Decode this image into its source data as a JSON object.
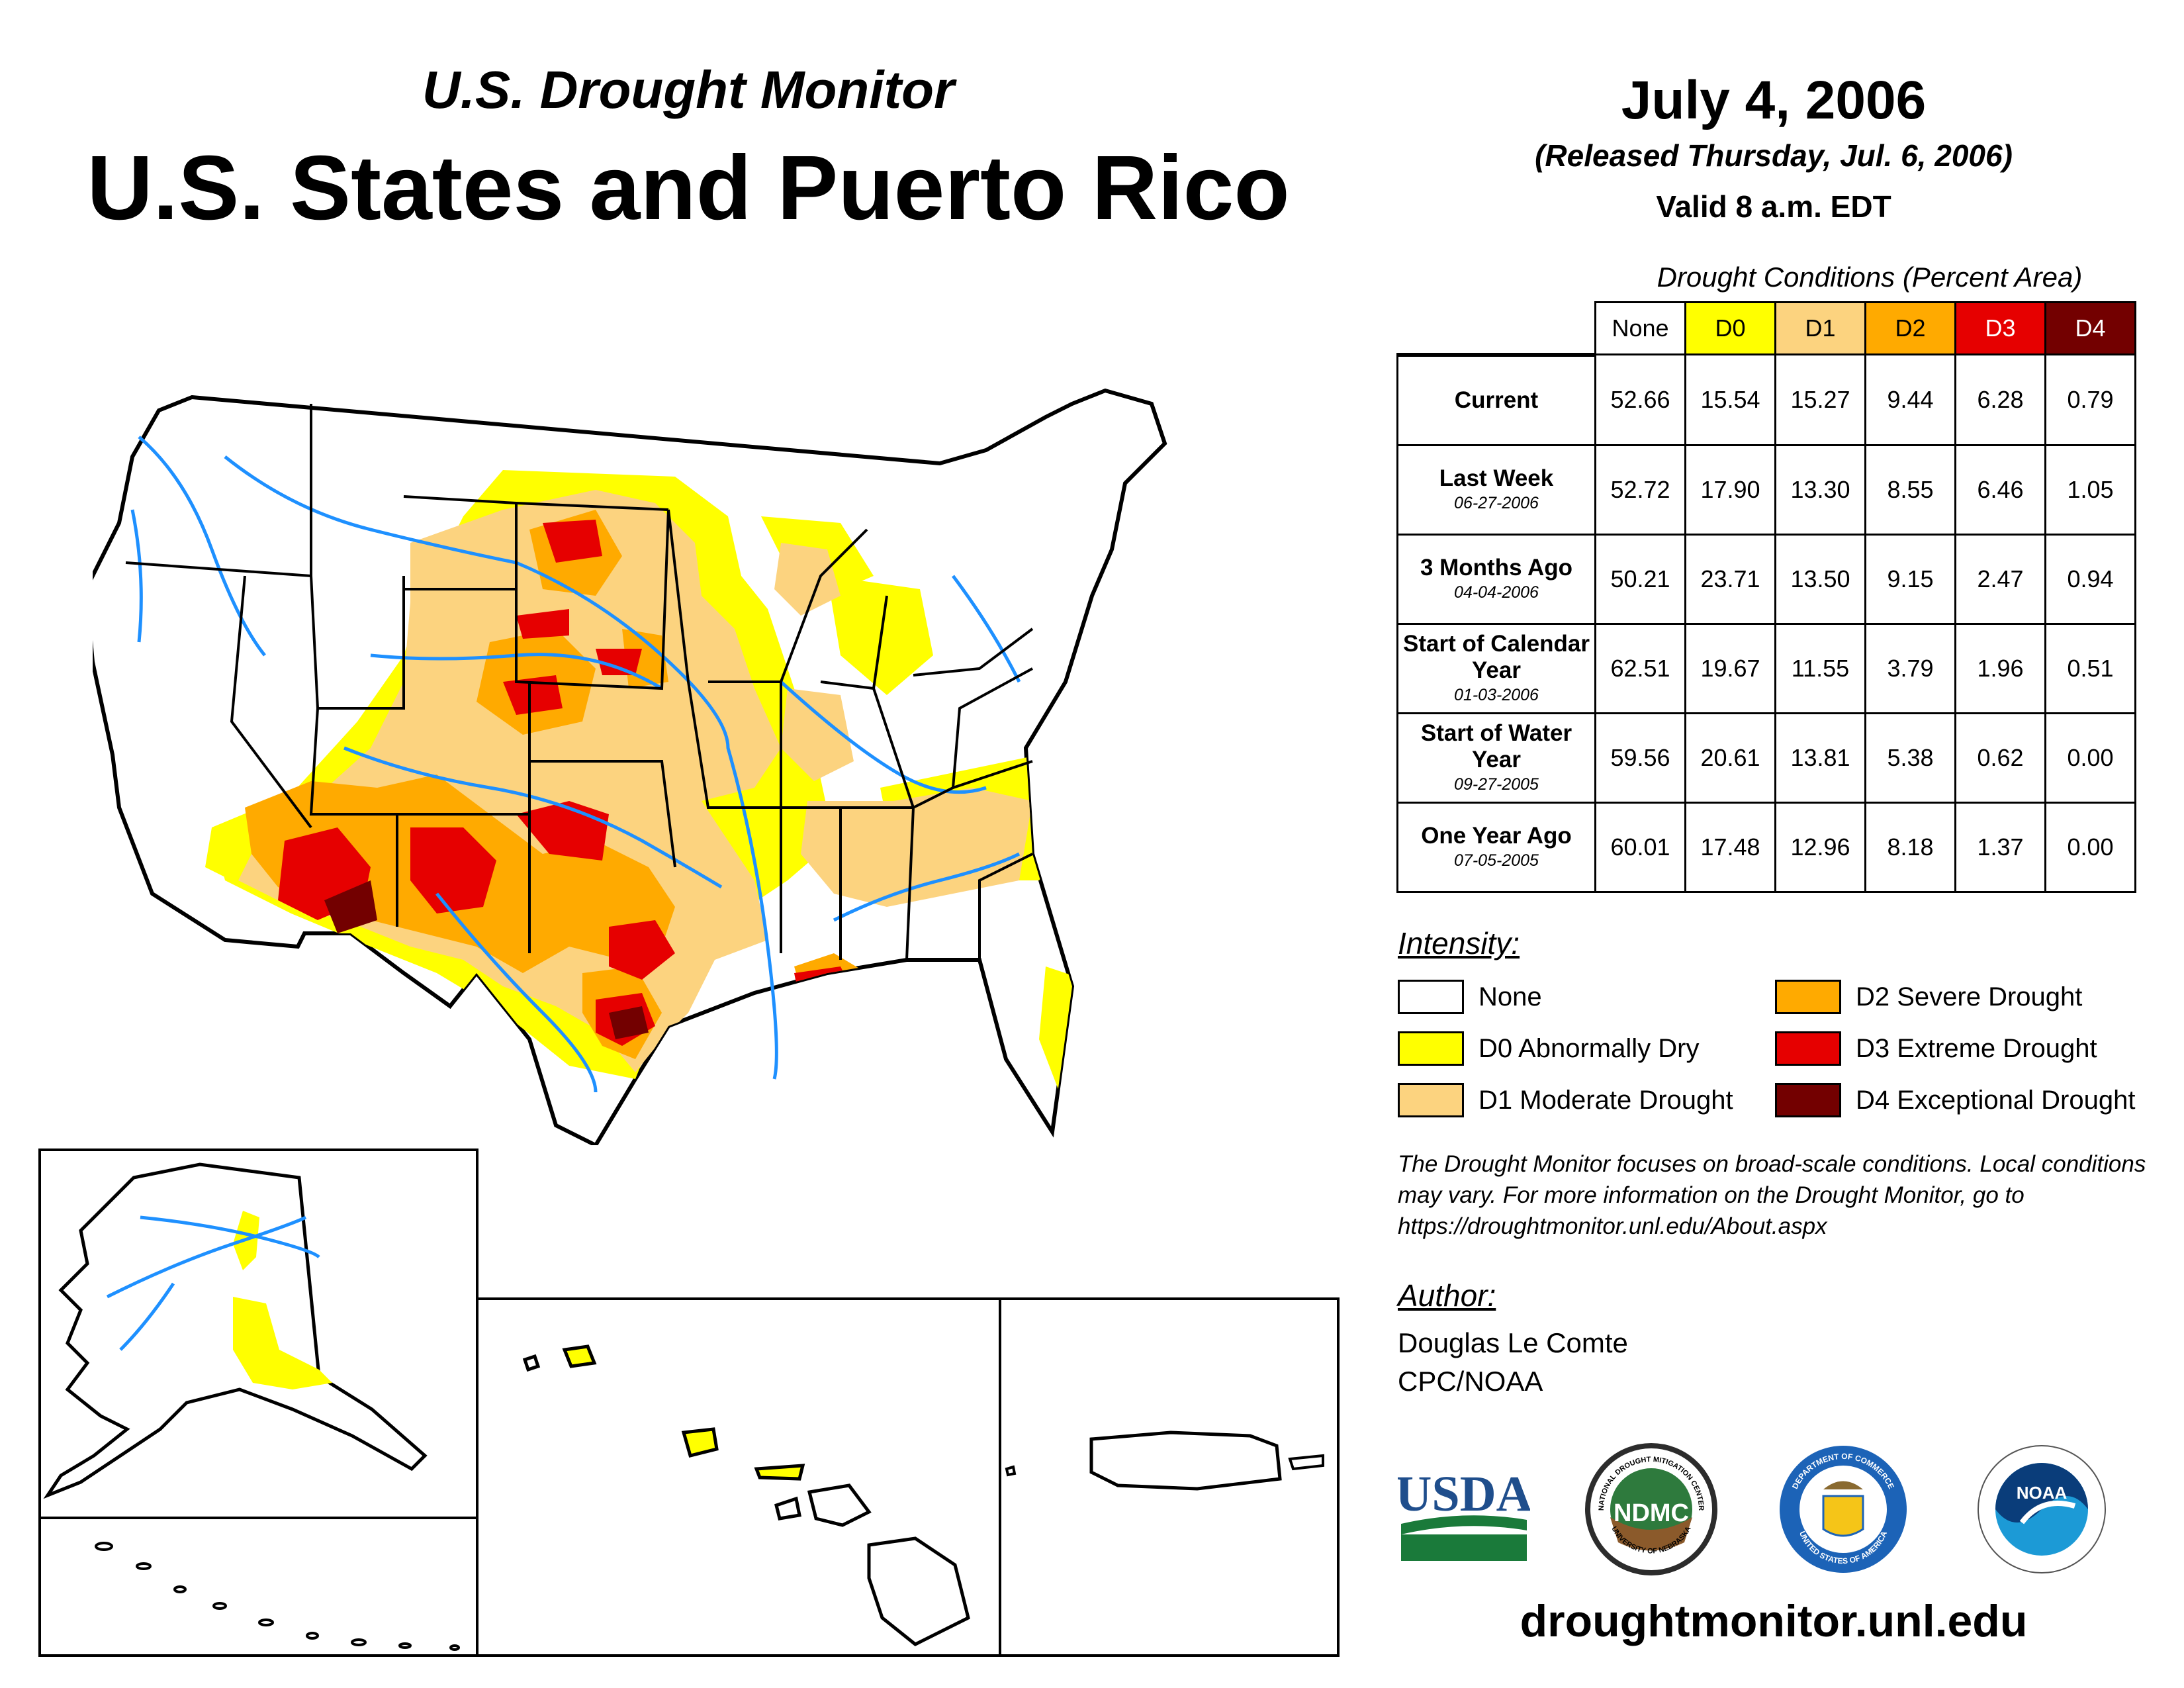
{
  "header": {
    "subtitle": "U.S. Drought Monitor",
    "title": "U.S. States and Puerto Rico",
    "date": "July 4, 2006",
    "released": "(Released Thursday, Jul. 6, 2006)",
    "valid": "Valid 8 a.m. EDT"
  },
  "table": {
    "caption": "Drought Conditions (Percent Area)",
    "columns": [
      "None",
      "D0",
      "D1",
      "D2",
      "D3",
      "D4"
    ],
    "column_colors": [
      "#FFFFFF",
      "#FFFF00",
      "#FCD37F",
      "#FFAA00",
      "#E60000",
      "#730000"
    ],
    "rows": [
      {
        "label": "Current",
        "date": "",
        "values": [
          "52.66",
          "15.54",
          "15.27",
          "9.44",
          "6.28",
          "0.79"
        ]
      },
      {
        "label": "Last Week",
        "date": "06-27-2006",
        "values": [
          "52.72",
          "17.90",
          "13.30",
          "8.55",
          "6.46",
          "1.05"
        ]
      },
      {
        "label": "3 Months Ago",
        "date": "04-04-2006",
        "values": [
          "50.21",
          "23.71",
          "13.50",
          "9.15",
          "2.47",
          "0.94"
        ]
      },
      {
        "label": "Start of Calendar Year",
        "date": "01-03-2006",
        "values": [
          "62.51",
          "19.67",
          "11.55",
          "3.79",
          "1.96",
          "0.51"
        ]
      },
      {
        "label": "Start of Water Year",
        "date": "09-27-2005",
        "values": [
          "59.56",
          "20.61",
          "13.81",
          "5.38",
          "0.62",
          "0.00"
        ]
      },
      {
        "label": "One Year Ago",
        "date": "07-05-2005",
        "values": [
          "60.01",
          "17.48",
          "12.96",
          "8.18",
          "1.37",
          "0.00"
        ]
      }
    ]
  },
  "legend": {
    "heading": "Intensity:",
    "items": [
      {
        "label": "None",
        "color": "#FFFFFF"
      },
      {
        "label": "D0 Abnormally Dry",
        "color": "#FFFF00"
      },
      {
        "label": "D1 Moderate Drought",
        "color": "#FCD37F"
      },
      {
        "label": "D2 Severe Drought",
        "color": "#FFAA00"
      },
      {
        "label": "D3 Extreme Drought",
        "color": "#E60000"
      },
      {
        "label": "D4 Exceptional Drought",
        "color": "#730000"
      }
    ]
  },
  "note": "The Drought Monitor focuses on broad-scale conditions. Local conditions may vary. For more information on the Drought Monitor, go to https://droughtmonitor.unl.edu/About.aspx",
  "author": {
    "heading": "Author:",
    "name": "Douglas Le Comte",
    "org": "CPC/NOAA"
  },
  "logos": {
    "usda": "USDA",
    "ndmc": "NDMC",
    "ndmc_ring": "NATIONAL DROUGHT MITIGATION CENTER",
    "ndmc_ring_bottom": "UNIVERSITY OF NEBRASKA",
    "commerce_ring": "DEPARTMENT OF COMMERCE",
    "commerce_ring_bottom": "UNITED STATES OF AMERICA",
    "noaa": "NOAA"
  },
  "footer_url": "droughtmonitor.unl.edu"
}
